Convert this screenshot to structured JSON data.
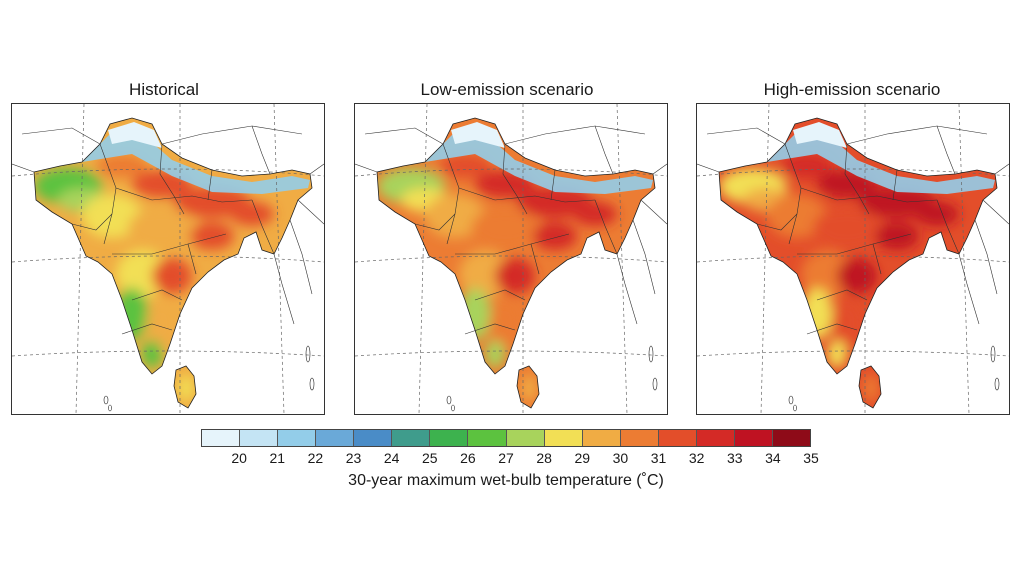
{
  "panels": [
    {
      "title": "Historical",
      "palette_shift": 0
    },
    {
      "title": "Low-emission scenario",
      "palette_shift": 1
    },
    {
      "title": "High-emission scenario",
      "palette_shift": 2
    }
  ],
  "colorbar": {
    "label": "30-year maximum wet-bulb temperature (˚C)",
    "ticks": [
      "20",
      "21",
      "22",
      "23",
      "24",
      "25",
      "26",
      "27",
      "28",
      "29",
      "30",
      "31",
      "32",
      "33",
      "34",
      "35"
    ],
    "colors": [
      "#e6f4fb",
      "#c4e4f4",
      "#93cde9",
      "#6aa9d8",
      "#4a8cc7",
      "#3f9c8c",
      "#3db24e",
      "#5cc23f",
      "#a8d35c",
      "#f2df55",
      "#f0ac44",
      "#ec7c33",
      "#e34e2a",
      "#d42a26",
      "#bf1222",
      "#8e0b18"
    ]
  }
}
